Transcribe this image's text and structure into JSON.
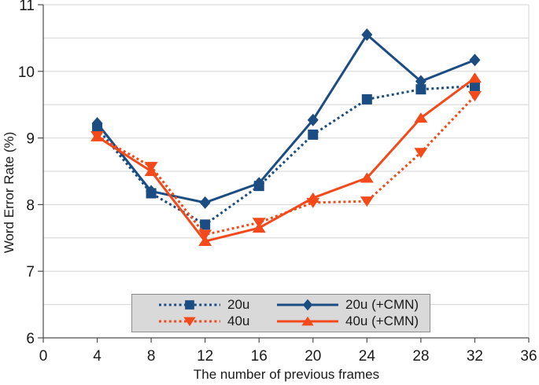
{
  "figure": {
    "background": "#ffffff",
    "axis_color": "#4d4d4d",
    "grid_color": "#d4d4d4",
    "text_color": "#1a1a1a"
  },
  "chart_data": {
    "type": "line",
    "title": "",
    "xlabel": "The number of previous frames",
    "ylabel": "Word Error Rate (%)",
    "xlim": [
      0,
      36
    ],
    "ylim": [
      6,
      11
    ],
    "x_ticks": [
      0,
      4,
      8,
      12,
      16,
      20,
      24,
      28,
      32,
      36
    ],
    "y_ticks": [
      6,
      7,
      8,
      9,
      10,
      11
    ],
    "y_minor_step": 0.5,
    "grid": "horizontal-only",
    "x": [
      4,
      8,
      12,
      16,
      20,
      24,
      28,
      32
    ],
    "series": [
      {
        "name": "20u",
        "color": "#1b4d82",
        "line": "dotted",
        "marker": "square",
        "values": [
          9.15,
          8.17,
          7.7,
          8.28,
          9.05,
          9.58,
          9.73,
          9.78
        ]
      },
      {
        "name": "40u",
        "color": "#f4491a",
        "line": "dotted",
        "marker": "triangle-down",
        "values": [
          9.03,
          8.57,
          7.55,
          7.73,
          8.03,
          8.05,
          8.78,
          9.63
        ]
      },
      {
        "name": "20u (+CMN)",
        "color": "#1b4d82",
        "line": "solid",
        "marker": "diamond",
        "values": [
          9.22,
          8.2,
          8.03,
          8.32,
          9.27,
          10.55,
          9.85,
          10.17
        ]
      },
      {
        "name": "40u (+CMN)",
        "color": "#f4491a",
        "line": "solid",
        "marker": "triangle-up",
        "values": [
          9.02,
          8.5,
          7.45,
          7.65,
          8.1,
          8.4,
          9.3,
          9.9
        ]
      }
    ],
    "draw_order": [
      2,
      0,
      1,
      3
    ]
  },
  "legend": {
    "position": "bottom-center",
    "background": "#d9d9d9",
    "border_color": "#8c8c8c",
    "order": [
      0,
      2,
      1,
      3
    ]
  }
}
